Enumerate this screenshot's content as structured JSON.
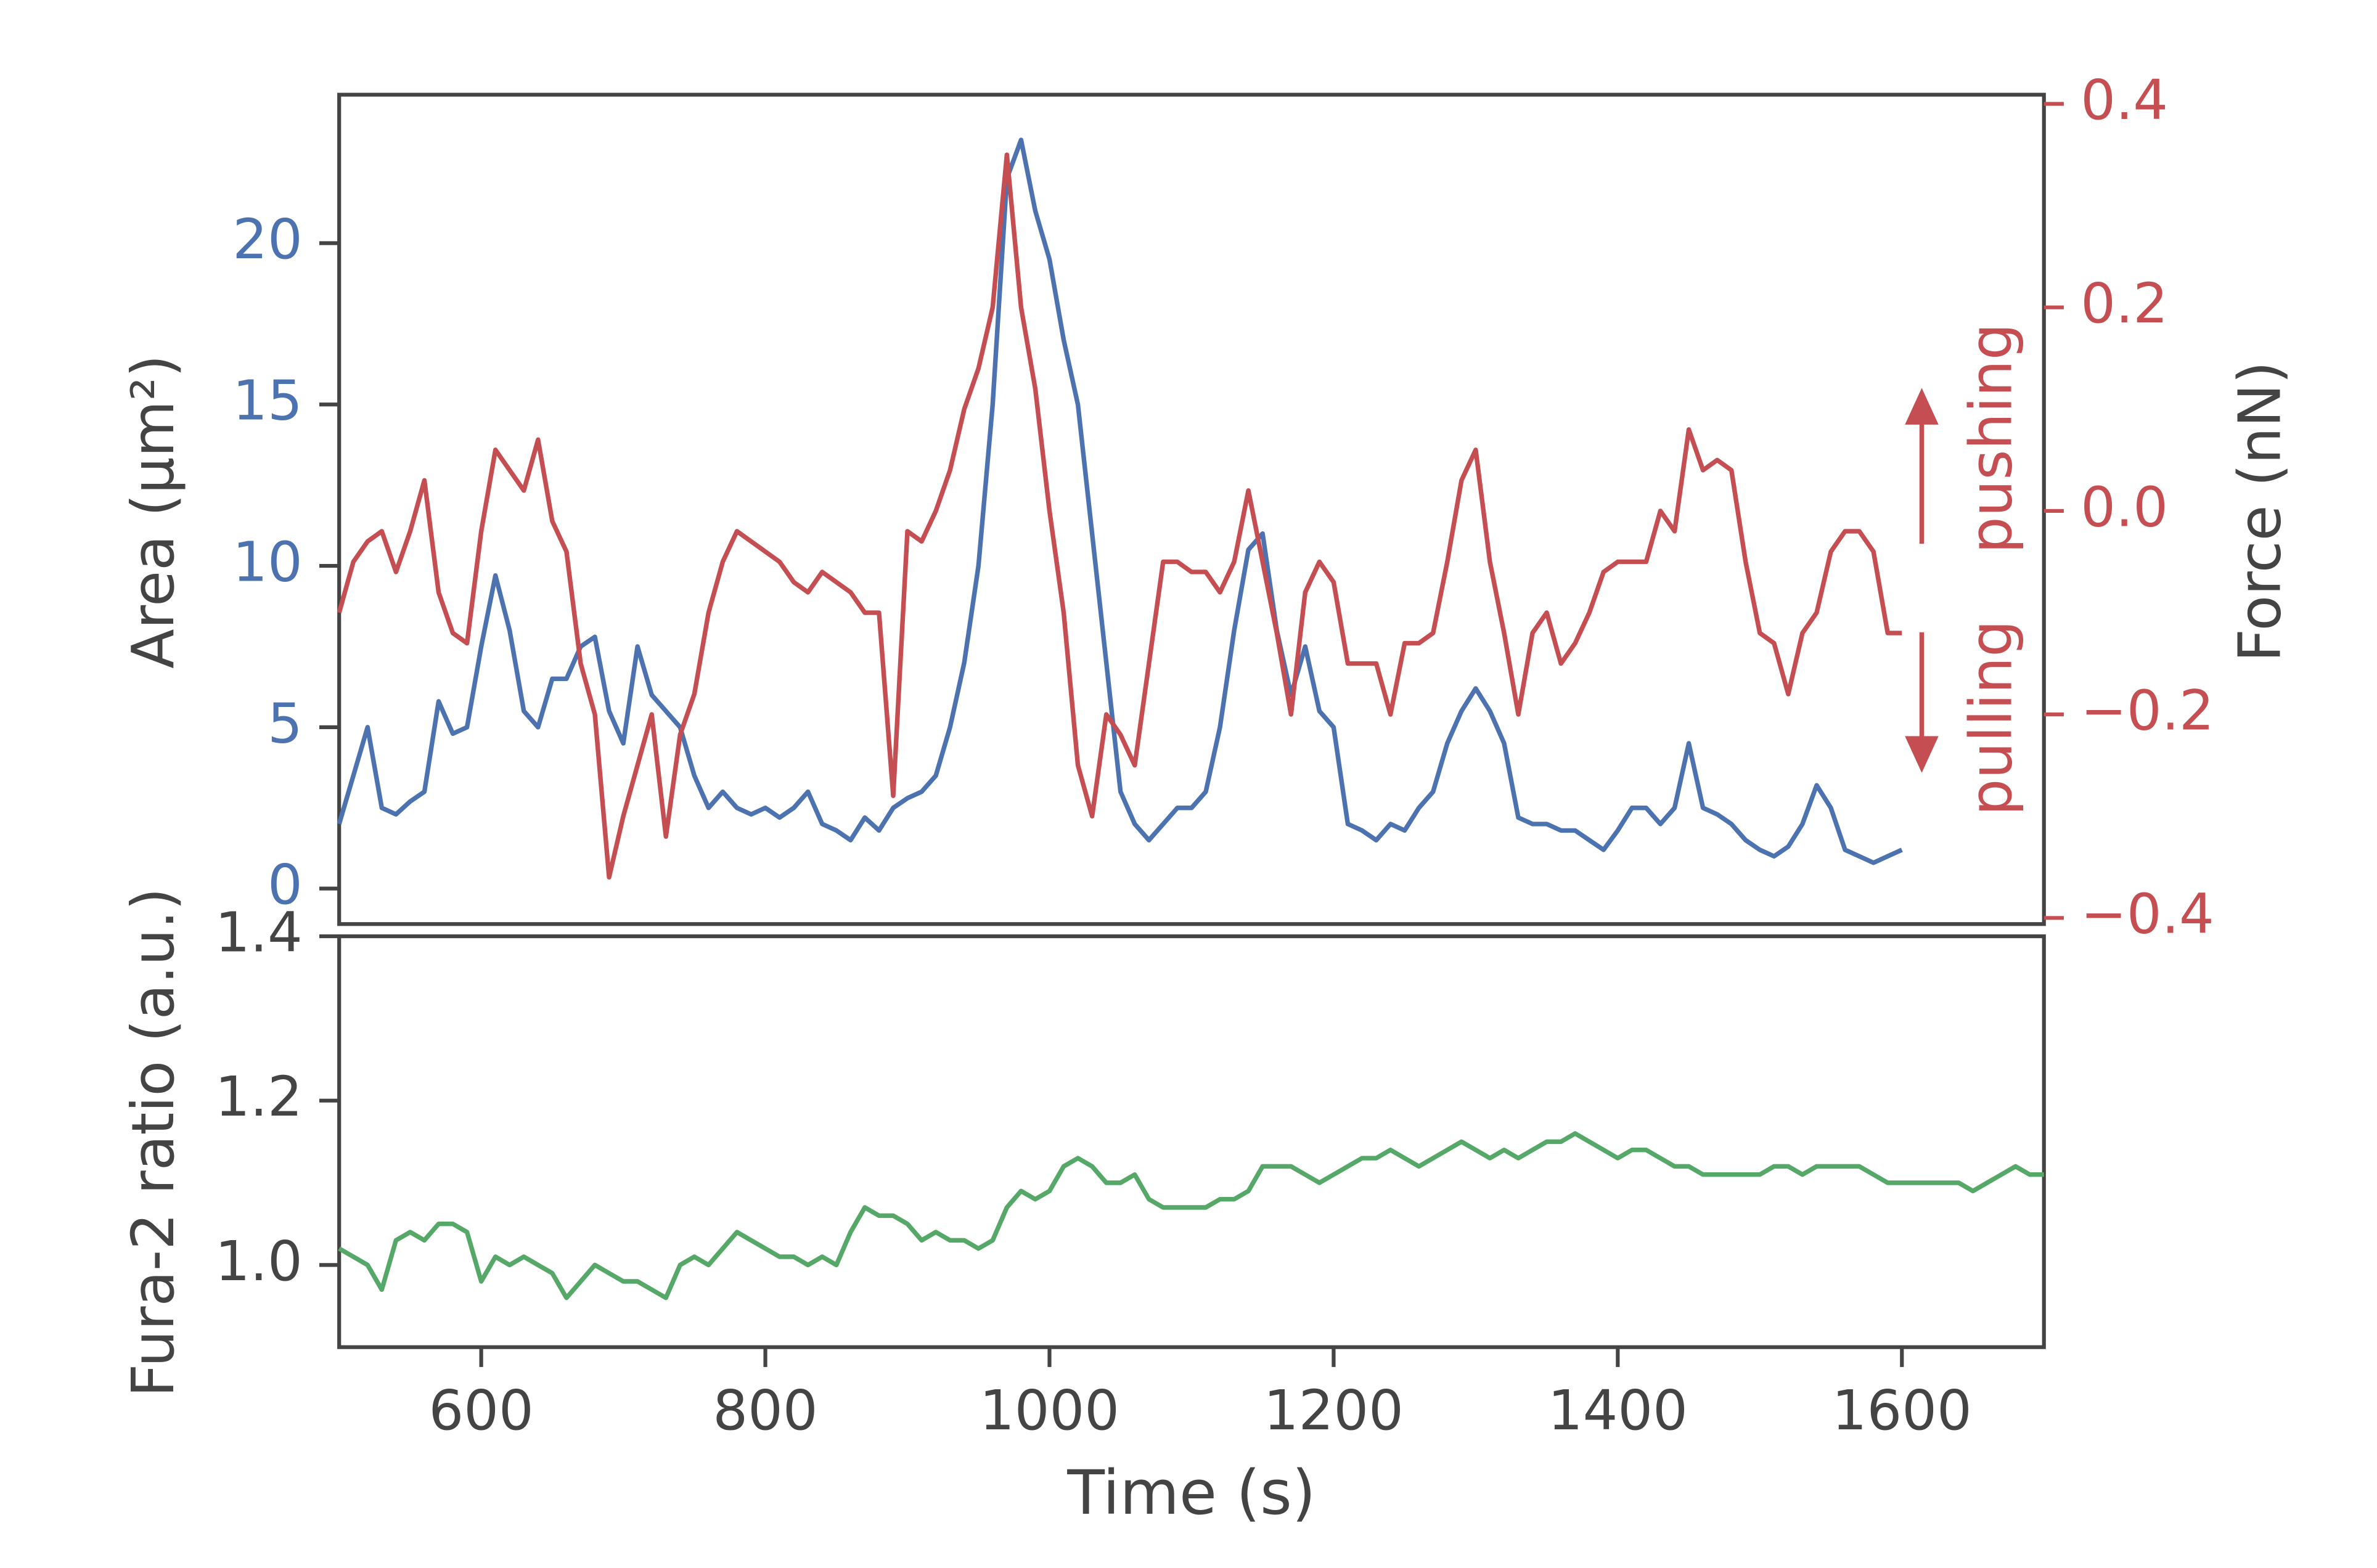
{
  "chart_data": [
    {
      "type": "line",
      "ylabel": "Area (µm²)",
      "y2label": "Force (nN)",
      "annotations": [
        "pushing",
        "pulling"
      ],
      "xlim": [
        500,
        1700
      ],
      "ylim": [
        -1.1,
        24.6
      ],
      "yticks": [
        0,
        5,
        10,
        15,
        20
      ],
      "y2lim": [
        -0.406,
        0.409
      ],
      "y2ticks": [
        {
          "value": -0.4,
          "label": "−0.4"
        },
        {
          "value": -0.2,
          "label": "−0.2"
        },
        {
          "value": 0,
          "label": "0.0"
        },
        0.2,
        0.4
      ],
      "x": [
        500,
        510,
        520,
        530,
        540,
        550,
        560,
        570,
        580,
        590,
        600,
        610,
        620,
        630,
        640,
        650,
        660,
        670,
        680,
        690,
        700,
        710,
        720,
        730,
        740,
        750,
        760,
        770,
        780,
        790,
        800,
        810,
        820,
        830,
        840,
        850,
        860,
        870,
        880,
        890,
        900,
        910,
        920,
        930,
        940,
        950,
        960,
        970,
        980,
        990,
        1000,
        1010,
        1020,
        1030,
        1040,
        1050,
        1060,
        1070,
        1080,
        1090,
        1100,
        1110,
        1120,
        1130,
        1140,
        1150,
        1160,
        1170,
        1180,
        1190,
        1200,
        1210,
        1220,
        1230,
        1240,
        1250,
        1260,
        1270,
        1280,
        1290,
        1300,
        1310,
        1320,
        1330,
        1340,
        1350,
        1360,
        1370,
        1380,
        1390,
        1400,
        1410,
        1420,
        1430,
        1440,
        1450,
        1460,
        1470,
        1480,
        1490,
        1500,
        1510,
        1520,
        1530,
        1540,
        1550,
        1560,
        1570,
        1580,
        1590,
        1600
      ],
      "series": [
        {
          "color": "#4c72b0",
          "axis": "y",
          "values": [
            2,
            3.5,
            5,
            2.5,
            2.3,
            2.7,
            3,
            5.8,
            4.8,
            5,
            7.5,
            9.7,
            8,
            5.5,
            5,
            6.5,
            6.5,
            7.5,
            7.8,
            5.5,
            4.5,
            7.5,
            6,
            5.5,
            5,
            3.5,
            2.5,
            3,
            2.5,
            2.3,
            2.5,
            2.2,
            2.5,
            3,
            2,
            1.8,
            1.5,
            2.2,
            1.8,
            2.5,
            2.8,
            3,
            3.5,
            5,
            7,
            10,
            15,
            22,
            23.2,
            21,
            19.5,
            17,
            15,
            11,
            7,
            3,
            2,
            1.5,
            2,
            2.5,
            2.5,
            3,
            5,
            8,
            10.5,
            11,
            8,
            6,
            7.5,
            5.5,
            5,
            2,
            1.8,
            1.5,
            2,
            1.8,
            2.5,
            3,
            4.5,
            5.5,
            6.2,
            5.5,
            4.5,
            2.2,
            2,
            2,
            1.8,
            1.8,
            1.5,
            1.2,
            1.8,
            2.5,
            2.5,
            2,
            2.5,
            4.5,
            2.5,
            2.3,
            2,
            1.5,
            1.2,
            1,
            1.3,
            2,
            3.2,
            2.5,
            1.2,
            1,
            0.8,
            1,
            1.2
          ]
        },
        {
          "color": "#c44e52",
          "axis": "y2",
          "values": [
            -0.1,
            -0.05,
            -0.03,
            -0.02,
            -0.06,
            -0.02,
            0.03,
            -0.08,
            -0.12,
            -0.13,
            -0.02,
            0.06,
            0.04,
            0.02,
            0.07,
            -0.01,
            -0.04,
            -0.15,
            -0.2,
            -0.36,
            -0.3,
            -0.25,
            -0.2,
            -0.32,
            -0.22,
            -0.18,
            -0.1,
            -0.05,
            -0.02,
            -0.03,
            -0.04,
            -0.05,
            -0.07,
            -0.08,
            -0.06,
            -0.07,
            -0.08,
            -0.1,
            -0.1,
            -0.28,
            -0.02,
            -0.03,
            0,
            0.04,
            0.1,
            0.14,
            0.2,
            0.35,
            0.2,
            0.12,
            0,
            -0.1,
            -0.25,
            -0.3,
            -0.2,
            -0.22,
            -0.25,
            -0.15,
            -0.05,
            -0.05,
            -0.06,
            -0.06,
            -0.08,
            -0.05,
            0.02,
            -0.05,
            -0.12,
            -0.2,
            -0.08,
            -0.05,
            -0.07,
            -0.15,
            -0.15,
            -0.15,
            -0.2,
            -0.13,
            -0.13,
            -0.12,
            -0.05,
            0.03,
            0.06,
            -0.05,
            -0.12,
            -0.2,
            -0.12,
            -0.1,
            -0.15,
            -0.13,
            -0.1,
            -0.06,
            -0.05,
            -0.05,
            -0.05,
            0,
            -0.02,
            0.08,
            0.04,
            0.05,
            0.04,
            -0.05,
            -0.12,
            -0.13,
            -0.18,
            -0.12,
            -0.1,
            -0.04,
            -0.02,
            -0.02,
            -0.04,
            -0.12,
            -0.12
          ]
        }
      ]
    },
    {
      "type": "line",
      "ylabel": "Fura-2 ratio (a.u.)",
      "xlabel": "Time (s)",
      "xlim": [
        500,
        1700
      ],
      "xticks": [
        600,
        800,
        1000,
        1200,
        1400,
        1600
      ],
      "ylim": [
        0.9,
        1.4
      ],
      "yticks": [
        {
          "value": 1,
          "label": "1.0"
        },
        1.2,
        1.4
      ],
      "x": [
        500,
        510,
        520,
        530,
        540,
        550,
        560,
        570,
        580,
        590,
        600,
        610,
        620,
        630,
        640,
        650,
        660,
        670,
        680,
        690,
        700,
        710,
        720,
        730,
        740,
        750,
        760,
        770,
        780,
        790,
        800,
        810,
        820,
        830,
        840,
        850,
        860,
        870,
        880,
        890,
        900,
        910,
        920,
        930,
        940,
        950,
        960,
        970,
        980,
        990,
        1000,
        1010,
        1020,
        1030,
        1040,
        1050,
        1060,
        1070,
        1080,
        1090,
        1100,
        1110,
        1120,
        1130,
        1140,
        1150,
        1160,
        1170,
        1180,
        1190,
        1200,
        1210,
        1220,
        1230,
        1240,
        1250,
        1260,
        1270,
        1280,
        1290,
        1300,
        1310,
        1320,
        1330,
        1340,
        1350,
        1360,
        1370,
        1380,
        1390,
        1400,
        1410,
        1420,
        1430,
        1440,
        1450,
        1460,
        1470,
        1480,
        1490,
        1500,
        1510,
        1520,
        1530,
        1540,
        1550,
        1560,
        1570,
        1580,
        1590,
        1600,
        1610,
        1620,
        1630,
        1640,
        1650,
        1660,
        1670,
        1680,
        1690,
        1700
      ],
      "series": [
        {
          "color": "#55a868",
          "axis": "y",
          "values": [
            1.02,
            1.01,
            1,
            0.97,
            1.03,
            1.04,
            1.03,
            1.05,
            1.05,
            1.04,
            0.98,
            1.01,
            1,
            1.01,
            1,
            0.99,
            0.96,
            0.98,
            1,
            0.99,
            0.98,
            0.98,
            0.97,
            0.96,
            1,
            1.01,
            1,
            1.02,
            1.04,
            1.03,
            1.02,
            1.01,
            1.01,
            1,
            1.01,
            1,
            1.04,
            1.07,
            1.06,
            1.06,
            1.05,
            1.03,
            1.04,
            1.03,
            1.03,
            1.02,
            1.03,
            1.07,
            1.09,
            1.08,
            1.09,
            1.12,
            1.13,
            1.12,
            1.1,
            1.1,
            1.11,
            1.08,
            1.07,
            1.07,
            1.07,
            1.07,
            1.08,
            1.08,
            1.09,
            1.12,
            1.12,
            1.12,
            1.11,
            1.1,
            1.11,
            1.12,
            1.13,
            1.13,
            1.14,
            1.13,
            1.12,
            1.13,
            1.14,
            1.15,
            1.14,
            1.13,
            1.14,
            1.13,
            1.14,
            1.15,
            1.15,
            1.16,
            1.15,
            1.14,
            1.13,
            1.14,
            1.14,
            1.13,
            1.12,
            1.12,
            1.11,
            1.11,
            1.11,
            1.11,
            1.11,
            1.12,
            1.12,
            1.11,
            1.12,
            1.12,
            1.12,
            1.12,
            1.11,
            1.1,
            1.1,
            1.1,
            1.1,
            1.1,
            1.1,
            1.09,
            1.1,
            1.11,
            1.12,
            1.11,
            1.11
          ]
        }
      ]
    }
  ]
}
